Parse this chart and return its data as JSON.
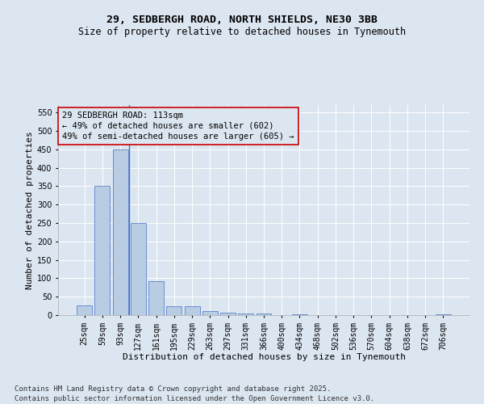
{
  "title_line1": "29, SEDBERGH ROAD, NORTH SHIELDS, NE30 3BB",
  "title_line2": "Size of property relative to detached houses in Tynemouth",
  "xlabel": "Distribution of detached houses by size in Tynemouth",
  "ylabel": "Number of detached properties",
  "categories": [
    "25sqm",
    "59sqm",
    "93sqm",
    "127sqm",
    "161sqm",
    "195sqm",
    "229sqm",
    "263sqm",
    "297sqm",
    "331sqm",
    "366sqm",
    "400sqm",
    "434sqm",
    "468sqm",
    "502sqm",
    "536sqm",
    "570sqm",
    "604sqm",
    "638sqm",
    "672sqm",
    "706sqm"
  ],
  "values": [
    26,
    350,
    450,
    250,
    93,
    24,
    24,
    11,
    7,
    5,
    4,
    0,
    2,
    0,
    0,
    0,
    0,
    0,
    0,
    0,
    2
  ],
  "bar_color": "#b8cce4",
  "bar_edge_color": "#4472c4",
  "bg_color": "#dce6f1",
  "grid_color": "#ffffff",
  "annotation_line1": "29 SEDBERGH ROAD: 113sqm",
  "annotation_line2": "← 49% of detached houses are smaller (602)",
  "annotation_line3": "49% of semi-detached houses are larger (605) →",
  "annotation_box_color": "#cc0000",
  "vline_x": 2.5,
  "ylim": [
    0,
    570
  ],
  "yticks": [
    0,
    50,
    100,
    150,
    200,
    250,
    300,
    350,
    400,
    450,
    500,
    550
  ],
  "footnote_line1": "Contains HM Land Registry data © Crown copyright and database right 2025.",
  "footnote_line2": "Contains public sector information licensed under the Open Government Licence v3.0.",
  "title_fontsize": 9.5,
  "subtitle_fontsize": 8.5,
  "axis_label_fontsize": 8,
  "tick_fontsize": 7,
  "annotation_fontsize": 7.5,
  "footnote_fontsize": 6.5
}
